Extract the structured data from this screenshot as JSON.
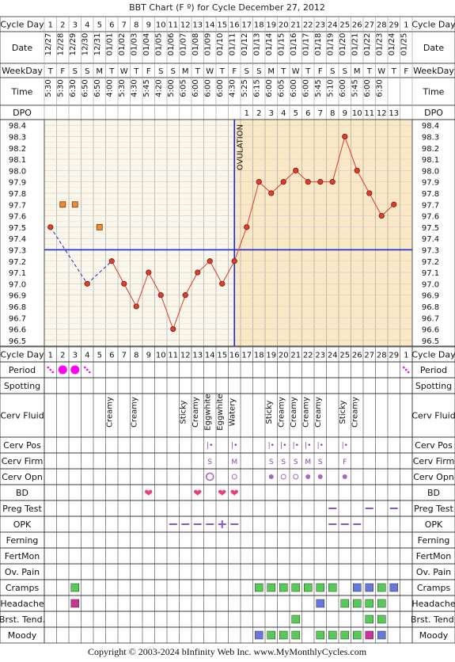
{
  "title": "BBT Chart (F º) for Cycle December 27, 2012",
  "footer": "Copyright © 2003-2024 bInfinity Web Inc.    www.MyMonthlyCycles.com",
  "row_labels": {
    "cycle_day": "Cycle Day",
    "date": "Date",
    "weekday": "WeekDay",
    "time": "Time",
    "dpo": "DPO",
    "period": "Period",
    "spotting": "Spotting",
    "cerv_fluid": "Cerv Fluid",
    "cerv_pos": "Cerv Pos",
    "cerv_firm": "Cerv Firm",
    "cerv_opn": "Cerv Opn",
    "bd": "BD",
    "preg_test": "Preg Test",
    "opk": "OPK",
    "ferning": "Ferning",
    "fertmon": "FertMon",
    "ov_pain": "Ov. Pain",
    "cramps": "Cramps",
    "headache": "Headache",
    "brst_tend": "Brst. Tend.",
    "moody": "Moody"
  },
  "ovulation_label": "OVULATION",
  "colors": {
    "grid": "#cccccc",
    "chart_bg_pre": "#fbf7ea",
    "chart_bg_post": "#fbe8c4",
    "line": "#e03c2c",
    "marker": "#e03c2c",
    "coverline": "#1a2bd0",
    "ovulation": "#1a2bd0",
    "header_bg": "#f4f4f4",
    "period": "#ff00ff",
    "bd": "#ee3b7a",
    "green": "#55cc55",
    "blue": "#6677dd",
    "purple": "#cc3399",
    "orange": "#f08a30",
    "opk": "#8855cc"
  },
  "chart_data": {
    "type": "line",
    "cycle_days": [
      "1",
      "2",
      "3",
      "4",
      "5",
      "6",
      "7",
      "8",
      "9",
      "10",
      "11",
      "12",
      "13",
      "14",
      "15",
      "16",
      "17",
      "18",
      "19",
      "20",
      "21",
      "22",
      "23",
      "24",
      "25",
      "26",
      "27",
      "28",
      "29",
      "1"
    ],
    "dates": [
      "12/27",
      "12/28",
      "12/29",
      "12/30",
      "12/31",
      "01/01",
      "01/02",
      "01/03",
      "01/04",
      "01/05",
      "01/06",
      "01/07",
      "01/08",
      "01/09",
      "01/10",
      "01/11",
      "01/12",
      "01/13",
      "01/14",
      "01/15",
      "01/16",
      "01/17",
      "01/18",
      "01/19",
      "01/20",
      "01/21",
      "01/22",
      "01/23",
      "01/24",
      "01/25"
    ],
    "weekdays": [
      "T",
      "F",
      "S",
      "S",
      "M",
      "T",
      "W",
      "T",
      "F",
      "S",
      "S",
      "M",
      "T",
      "W",
      "T",
      "F",
      "S",
      "S",
      "M",
      "T",
      "W",
      "T",
      "F",
      "S",
      "S",
      "M",
      "T",
      "W",
      "T",
      "F"
    ],
    "times": [
      "5:30",
      "5:30",
      "6:30",
      "6:50",
      "6:50",
      "4:00",
      "5:30",
      "4:30",
      "5:45",
      "4:20",
      "5:00",
      "6:05",
      "6:00",
      "6:00",
      "6:00",
      "4:30",
      "5:25",
      "6:15",
      "6:00",
      "6:05",
      "6:00",
      "6:00",
      "5:45",
      "5:10",
      "6:00",
      "5:45",
      "6:00",
      "6:30",
      "",
      ""
    ],
    "dpo": [
      "",
      "",
      "",
      "",
      "",
      "",
      "",
      "",
      "",
      "",
      "",
      "",
      "",
      "",
      "",
      "",
      "1",
      "2",
      "3",
      "4",
      "5",
      "6",
      "7",
      "8",
      "9",
      "10",
      "11",
      "12",
      "13",
      ""
    ],
    "temps": [
      97.5,
      null,
      null,
      97.0,
      null,
      97.2,
      97.0,
      96.8,
      97.1,
      96.9,
      96.6,
      96.9,
      97.1,
      97.2,
      97.0,
      97.2,
      97.5,
      97.9,
      97.8,
      97.9,
      98.0,
      97.9,
      97.9,
      97.9,
      98.3,
      98.0,
      97.8,
      97.6,
      97.7,
      null
    ],
    "discarded": [
      null,
      97.7,
      97.7,
      null,
      97.5,
      null,
      null,
      null,
      null,
      null,
      null,
      null,
      null,
      null,
      null,
      null,
      null,
      null,
      null,
      null,
      null,
      null,
      null,
      null,
      null,
      null,
      null,
      null,
      null,
      null
    ],
    "y_ticks": [
      "98.4",
      "98.3",
      "98.2",
      "98.1",
      "98.0",
      "97.9",
      "97.8",
      "97.7",
      "97.6",
      "97.5",
      "97.4",
      "97.3",
      "97.2",
      "97.1",
      "97.0",
      "96.9",
      "96.8",
      "96.7",
      "96.6",
      "96.5"
    ],
    "ylim": [
      96.5,
      98.4
    ],
    "coverline": 97.3,
    "ovulation_after_day_index": 15
  },
  "period": [
    "spot",
    "heavy",
    "heavy",
    "spot",
    "",
    "",
    "",
    "",
    "",
    "",
    "",
    "",
    "",
    "",
    "",
    "",
    "",
    "",
    "",
    "",
    "",
    "",
    "",
    "",
    "",
    "",
    "",
    "",
    "",
    "spot"
  ],
  "cerv_fluid": [
    "",
    "",
    "",
    "",
    "",
    "Creamy",
    "",
    "Creamy",
    "",
    "",
    "",
    "Sticky",
    "Creamy",
    "Eggwhite",
    "Eggwhite",
    "Watery",
    "",
    "",
    "Sticky",
    "Creamy",
    "Creamy",
    "Creamy",
    "Creamy",
    "",
    "Sticky",
    "Creamy",
    "",
    "",
    "",
    ""
  ],
  "cerv_pos": [
    "",
    "",
    "",
    "",
    "",
    "",
    "",
    "",
    "",
    "",
    "",
    "",
    "",
    "|•",
    "",
    "|•",
    "",
    "",
    "|•",
    "|•",
    "|•",
    "|•",
    "|•",
    "",
    "|•",
    "",
    "",
    "",
    "",
    ""
  ],
  "cerv_firm": [
    "",
    "",
    "",
    "",
    "",
    "",
    "",
    "",
    "",
    "",
    "",
    "",
    "",
    "S",
    "",
    "M",
    "",
    "",
    "S",
    "S",
    "S",
    "M",
    "S",
    "",
    "F",
    "",
    "",
    "",
    "",
    ""
  ],
  "cerv_opn": [
    "",
    "",
    "",
    "",
    "",
    "",
    "",
    "",
    "",
    "",
    "",
    "",
    "",
    "large",
    "",
    "small",
    "",
    "",
    "med",
    "small",
    "small",
    "med",
    "med",
    "",
    "med",
    "",
    "",
    "",
    "",
    ""
  ],
  "bd": [
    "",
    "",
    "",
    "",
    "",
    "",
    "",
    "",
    "x",
    "",
    "",
    "",
    "x",
    "",
    "x",
    "x",
    "",
    "",
    "",
    "",
    "",
    "",
    "",
    "",
    "",
    "",
    "",
    "",
    "",
    ""
  ],
  "preg_test": [
    "",
    "",
    "",
    "",
    "",
    "",
    "",
    "",
    "",
    "",
    "",
    "",
    "",
    "",
    "",
    "",
    "",
    "",
    "",
    "",
    "",
    "",
    "",
    "neg",
    "",
    "",
    "neg",
    "",
    "neg",
    ""
  ],
  "opk": [
    "",
    "",
    "",
    "",
    "",
    "",
    "",
    "",
    "",
    "",
    "neg",
    "neg",
    "neg",
    "neg",
    "pos",
    "neg",
    "",
    "",
    "",
    "",
    "",
    "",
    "",
    "neg",
    "neg",
    "neg",
    "",
    "",
    "",
    ""
  ],
  "cramps": [
    "",
    "",
    "green",
    "",
    "",
    "",
    "",
    "",
    "",
    "",
    "",
    "",
    "",
    "",
    "",
    "",
    "",
    "green",
    "green",
    "green",
    "green",
    "green",
    "green",
    "green",
    "",
    "blue",
    "blue",
    "green",
    "blue",
    ""
  ],
  "headache": [
    "",
    "",
    "purple",
    "",
    "",
    "",
    "",
    "",
    "",
    "",
    "",
    "",
    "",
    "",
    "",
    "",
    "",
    "",
    "",
    "",
    "",
    "",
    "blue",
    "",
    "green",
    "green",
    "green",
    "green",
    "",
    ""
  ],
  "brst_tend": [
    "",
    "",
    "",
    "",
    "",
    "",
    "",
    "",
    "",
    "",
    "",
    "",
    "",
    "",
    "",
    "",
    "",
    "",
    "",
    "",
    "green",
    "",
    "",
    "",
    "",
    "",
    "green",
    "green",
    "",
    ""
  ],
  "moody": [
    "",
    "",
    "",
    "",
    "",
    "",
    "",
    "",
    "",
    "",
    "",
    "",
    "",
    "",
    "",
    "",
    "",
    "blue",
    "green",
    "green",
    "green",
    "",
    "green",
    "green",
    "green",
    "green",
    "purple",
    "blue",
    "",
    ""
  ]
}
